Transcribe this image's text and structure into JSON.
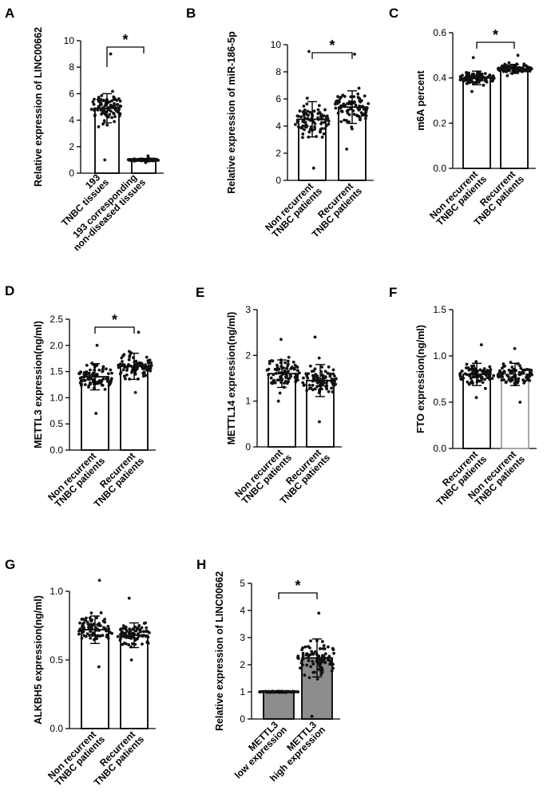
{
  "figure": {
    "panels": [
      "A",
      "B",
      "C",
      "D",
      "E",
      "F",
      "G",
      "H"
    ],
    "colors": {
      "ink": "#000000",
      "dots": "#111111",
      "bar_fill": "#ffffff",
      "bar_dark": "#8c8c8c",
      "bar_edge_gray": "#a0a0a0"
    }
  },
  "chart_data": [
    {
      "panel": "A",
      "type": "bar",
      "ylabel": "Relative expression of LINC00662",
      "ylim": [
        0,
        10
      ],
      "yticks": [
        0,
        2,
        4,
        6,
        8,
        10
      ],
      "categories": [
        "193\nTNBC tissues",
        "193 corresponding\nnon-diseased tissues"
      ],
      "values": [
        4.9,
        1.0
      ],
      "errors": [
        1.1,
        0.1
      ],
      "dot_ranges": [
        [
          1.0,
          9.0
        ],
        [
          0.8,
          1.3
        ]
      ],
      "significance": [
        {
          "between": [
            0,
            1
          ],
          "label": "*"
        }
      ]
    },
    {
      "panel": "B",
      "type": "bar",
      "ylabel": "Relative expression of miR-186-5p",
      "ylim": [
        0,
        10
      ],
      "yticks": [
        0,
        2,
        4,
        6,
        8,
        10
      ],
      "categories": [
        "Non recurrent\nTNBC patients",
        "Recurrent\nTNBC patients"
      ],
      "values": [
        4.5,
        5.4
      ],
      "errors": [
        1.3,
        1.2
      ],
      "dot_ranges": [
        [
          0.9,
          9.5
        ],
        [
          2.3,
          9.3
        ]
      ],
      "significance": [
        {
          "between": [
            0,
            1
          ],
          "label": "*"
        }
      ]
    },
    {
      "panel": "C",
      "type": "bar",
      "ylabel": "m6A percent",
      "ylim": [
        0,
        0.6
      ],
      "yticks": [
        "0.0",
        "0.2",
        "0.4",
        "0.6"
      ],
      "categories": [
        "Non recurrent\nTNBC patients",
        "Recurrent\nTNBC patients"
      ],
      "values": [
        0.4,
        0.44
      ],
      "errors": [
        0.03,
        0.02
      ],
      "dot_ranges": [
        [
          0.34,
          0.49
        ],
        [
          0.41,
          0.5
        ]
      ],
      "significance": [
        {
          "between": [
            0,
            1
          ],
          "label": "*"
        }
      ]
    },
    {
      "panel": "D",
      "type": "bar",
      "ylabel": "METTL3 expression(ng/ml)",
      "ylim": [
        0,
        2.5
      ],
      "yticks": [
        "0.0",
        "0.5",
        "1.0",
        "1.5",
        "2.0",
        "2.5"
      ],
      "categories": [
        "Non recurrent\nTNBC patients",
        "Recurrent\nTNBC patients"
      ],
      "values": [
        1.4,
        1.6
      ],
      "errors": [
        0.25,
        0.25
      ],
      "dot_ranges": [
        [
          0.7,
          2.0
        ],
        [
          1.1,
          2.25
        ]
      ],
      "significance": [
        {
          "between": [
            0,
            1
          ],
          "label": "*"
        }
      ]
    },
    {
      "panel": "E",
      "type": "bar",
      "ylabel": "METTL14 expression(ng/ml)",
      "ylim": [
        0,
        3
      ],
      "yticks": [
        0,
        1,
        2,
        3
      ],
      "categories": [
        "Non recurrent\nTNBC patients",
        "Recurrent\nTNBC patients"
      ],
      "values": [
        1.6,
        1.45
      ],
      "errors": [
        0.3,
        0.35
      ],
      "dot_ranges": [
        [
          1.0,
          2.35
        ],
        [
          0.55,
          2.4
        ]
      ],
      "significance": []
    },
    {
      "panel": "F",
      "type": "bar",
      "ylabel": "FTO expression(ng/ml)",
      "ylim": [
        0,
        1.5
      ],
      "yticks": [
        "0.0",
        "0.5",
        "1.0",
        "1.5"
      ],
      "categories": [
        "Recurrent\nTNBC patients",
        "Non recurrent\nTNBC patients"
      ],
      "values": [
        0.8,
        0.8
      ],
      "errors": [
        0.12,
        0.12
      ],
      "dot_ranges": [
        [
          0.55,
          1.12
        ],
        [
          0.5,
          1.08
        ]
      ],
      "bar_edges": [
        "#000000",
        "#a0a0a0"
      ],
      "significance": []
    },
    {
      "panel": "G",
      "type": "bar",
      "ylabel": "ALKBH5 expression(ng/ml)",
      "ylim": [
        0,
        1.0
      ],
      "yticks": [
        "0.0",
        "0.5",
        "1.0"
      ],
      "categories": [
        "Non recurrent\nTNBC patients",
        "Recurrent\nTNBC patients"
      ],
      "values": [
        0.72,
        0.68
      ],
      "errors": [
        0.1,
        0.09
      ],
      "dot_ranges": [
        [
          0.45,
          1.08
        ],
        [
          0.5,
          0.95
        ]
      ],
      "significance": []
    },
    {
      "panel": "H",
      "type": "bar",
      "ylabel": "Relative expression of LINC00662",
      "ylim": [
        0,
        5
      ],
      "yticks": [
        0,
        1,
        2,
        3,
        4,
        5
      ],
      "categories": [
        "METTL3\nlow expression",
        "METTL3\nhigh expression"
      ],
      "values": [
        1.0,
        2.25
      ],
      "errors": [
        0.02,
        0.7
      ],
      "dot_ranges": [
        [
          0.98,
          1.02
        ],
        [
          0.1,
          3.9
        ]
      ],
      "bar_fills": [
        "#8c8c8c",
        "#8c8c8c"
      ],
      "significance": [
        {
          "between": [
            0,
            1
          ],
          "label": "*"
        }
      ]
    }
  ]
}
